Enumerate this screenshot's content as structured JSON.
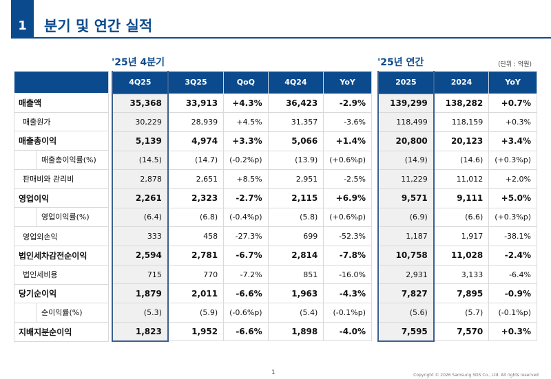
{
  "header": {
    "section_number": "1",
    "title": "분기 및 연간 실적"
  },
  "quarterly": {
    "title": "'25년 4분기",
    "columns": [
      "4Q25",
      "3Q25",
      "QoQ",
      "4Q24",
      "YoY"
    ]
  },
  "annual": {
    "title": "'25년 연간",
    "unit": "(단위 : 억원)",
    "columns": [
      "2025",
      "2024",
      "YoY"
    ]
  },
  "rows": [
    {
      "label": "매출액",
      "bold": true,
      "level": 1,
      "q": [
        "35,368",
        "33,913",
        "+4.3%",
        "36,423",
        "-2.9%"
      ],
      "a": [
        "139,299",
        "138,282",
        "+0.7%"
      ]
    },
    {
      "label": "매출원가",
      "bold": false,
      "level": 2,
      "q": [
        "30,229",
        "28,939",
        "+4.5%",
        "31,357",
        "-3.6%"
      ],
      "a": [
        "118,499",
        "118,159",
        "+0.3%"
      ]
    },
    {
      "label": "매출총이익",
      "bold": true,
      "level": 1,
      "q": [
        "5,139",
        "4,974",
        "+3.3%",
        "5,066",
        "+1.4%"
      ],
      "a": [
        "20,800",
        "20,123",
        "+3.4%"
      ]
    },
    {
      "label": "매출총이익률(%)",
      "bold": false,
      "level": 3,
      "q": [
        "(14.5)",
        "(14.7)",
        "(-0.2%p)",
        "(13.9)",
        "(+0.6%p)"
      ],
      "a": [
        "(14.9)",
        "(14.6)",
        "(+0.3%p)"
      ]
    },
    {
      "label": "판매비와 관리비",
      "bold": false,
      "level": 2,
      "q": [
        "2,878",
        "2,651",
        "+8.5%",
        "2,951",
        "-2.5%"
      ],
      "a": [
        "11,229",
        "11,012",
        "+2.0%"
      ]
    },
    {
      "label": "영업이익",
      "bold": true,
      "level": 1,
      "q": [
        "2,261",
        "2,323",
        "-2.7%",
        "2,115",
        "+6.9%"
      ],
      "a": [
        "9,571",
        "9,111",
        "+5.0%"
      ]
    },
    {
      "label": "영업이익률(%)",
      "bold": false,
      "level": 3,
      "q": [
        "(6.4)",
        "(6.8)",
        "(-0.4%p)",
        "(5.8)",
        "(+0.6%p)"
      ],
      "a": [
        "(6.9)",
        "(6.6)",
        "(+0.3%p)"
      ]
    },
    {
      "label": "영업외손익",
      "bold": false,
      "level": 2,
      "q": [
        "333",
        "458",
        "-27.3%",
        "699",
        "-52.3%"
      ],
      "a": [
        "1,187",
        "1,917",
        "-38.1%"
      ]
    },
    {
      "label": "법인세차감전순이익",
      "bold": true,
      "level": 1,
      "q": [
        "2,594",
        "2,781",
        "-6.7%",
        "2,814",
        "-7.8%"
      ],
      "a": [
        "10,758",
        "11,028",
        "-2.4%"
      ]
    },
    {
      "label": "법인세비용",
      "bold": false,
      "level": 2,
      "q": [
        "715",
        "770",
        "-7.2%",
        "851",
        "-16.0%"
      ],
      "a": [
        "2,931",
        "3,133",
        "-6.4%"
      ]
    },
    {
      "label": "당기순이익",
      "bold": true,
      "level": 1,
      "q": [
        "1,879",
        "2,011",
        "-6.6%",
        "1,963",
        "-4.3%"
      ],
      "a": [
        "7,827",
        "7,895",
        "-0.9%"
      ]
    },
    {
      "label": "순이익률(%)",
      "bold": false,
      "level": 3,
      "q": [
        "(5.3)",
        "(5.9)",
        "(-0.6%p)",
        "(5.4)",
        "(-0.1%p)"
      ],
      "a": [
        "(5.6)",
        "(5.7)",
        "(-0.1%p)"
      ]
    },
    {
      "label": "지배지분순이익",
      "bold": true,
      "level": 1,
      "q": [
        "1,823",
        "1,952",
        "-6.6%",
        "1,898",
        "-4.0%"
      ],
      "a": [
        "7,595",
        "7,570",
        "+0.3%"
      ]
    }
  ],
  "footer": {
    "page": "1",
    "copyright": "Copyright © 2026 Samsung SDS Co., Ltd. All rights reserved"
  },
  "colors": {
    "brand": "#0b4a8c",
    "highlight": "#f0f0f0"
  }
}
